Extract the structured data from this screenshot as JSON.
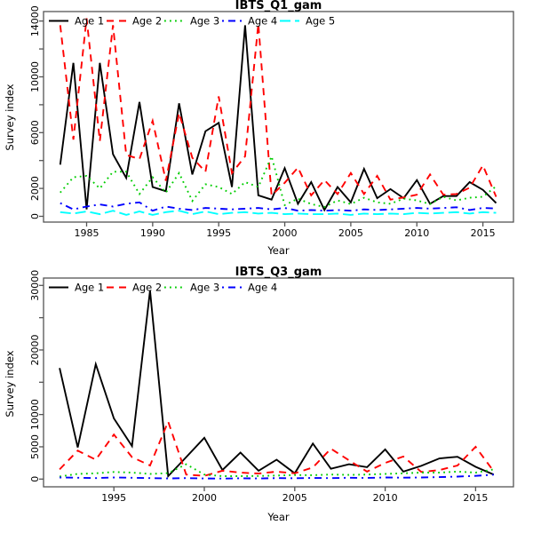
{
  "page": {
    "background": "#ffffff"
  },
  "chart_data": [
    {
      "type": "line",
      "title": "IBTS_Q1_gam",
      "xlabel": "Year",
      "ylabel": "Survey index",
      "grid": false,
      "legend_position": "top-left-horizontal",
      "xlim": [
        1983,
        2016
      ],
      "ylim": [
        0,
        14300
      ],
      "xticks": [
        1985,
        1990,
        1995,
        2000,
        2005,
        2010,
        2015
      ],
      "yticks": [
        0,
        2000,
        4000,
        6000,
        8000,
        10000,
        12000,
        14000
      ],
      "ytick_labels_shown": [
        0,
        2000,
        6000,
        10000,
        14000
      ],
      "x": [
        1983,
        1984,
        1985,
        1986,
        1987,
        1988,
        1989,
        1990,
        1991,
        1992,
        1993,
        1994,
        1995,
        1996,
        1997,
        1998,
        1999,
        2000,
        2001,
        2002,
        2003,
        2004,
        2005,
        2006,
        2007,
        2008,
        2009,
        2010,
        2011,
        2012,
        2013,
        2014,
        2015,
        2016
      ],
      "series": [
        {
          "name": "Age 1",
          "color": "#000000",
          "linestyle": "solid",
          "values": [
            3700,
            11000,
            500,
            11000,
            4450,
            2750,
            8200,
            2100,
            1800,
            8100,
            3000,
            6100,
            6700,
            2100,
            13700,
            1500,
            1200,
            3450,
            900,
            2450,
            450,
            2100,
            1000,
            3400,
            1300,
            1950,
            1300,
            2600,
            900,
            1450,
            1450,
            2450,
            1900,
            950
          ]
        },
        {
          "name": "Age 2",
          "color": "#FF0000",
          "linestyle": "dashed",
          "values": [
            13700,
            5500,
            14200,
            5400,
            13700,
            4400,
            4100,
            6850,
            2550,
            7400,
            4200,
            3200,
            8600,
            3100,
            4300,
            13800,
            1500,
            2400,
            3500,
            1500,
            2600,
            1600,
            3100,
            1600,
            2900,
            1200,
            1350,
            1550,
            3000,
            1550,
            1600,
            2050,
            3650,
            1400
          ]
        },
        {
          "name": "Age 3",
          "color": "#00CD00",
          "linestyle": "dotted",
          "values": [
            1700,
            2800,
            2900,
            2000,
            3200,
            3200,
            1600,
            2800,
            1700,
            3100,
            1100,
            2300,
            2100,
            1600,
            2450,
            2100,
            4300,
            800,
            1270,
            880,
            670,
            1140,
            880,
            1330,
            1000,
            900,
            1270,
            1140,
            880,
            1400,
            1140,
            1330,
            1400,
            2150
          ]
        },
        {
          "name": "Age 4",
          "color": "#0000FF",
          "linestyle": "dashdot",
          "values": [
            950,
            500,
            700,
            850,
            700,
            900,
            1000,
            400,
            700,
            550,
            450,
            600,
            550,
            500,
            550,
            600,
            500,
            600,
            400,
            450,
            400,
            450,
            400,
            500,
            450,
            500,
            550,
            600,
            550,
            600,
            650,
            450,
            600,
            560
          ]
        },
        {
          "name": "Age 5",
          "color": "#00FFFF",
          "linestyle": "longdash",
          "values": [
            300,
            200,
            350,
            150,
            400,
            100,
            350,
            100,
            300,
            400,
            150,
            350,
            150,
            250,
            300,
            200,
            250,
            150,
            200,
            150,
            150,
            200,
            100,
            200,
            150,
            200,
            150,
            250,
            200,
            250,
            300,
            200,
            300,
            250
          ]
        }
      ]
    },
    {
      "type": "line",
      "title": "IBTS_Q3_gam",
      "xlabel": "Year",
      "ylabel": "Survey index",
      "grid": false,
      "legend_position": "top-left-horizontal",
      "xlim": [
        1992,
        2016
      ],
      "ylim": [
        0,
        29200
      ],
      "xticks": [
        1995,
        2000,
        2005,
        2010,
        2015
      ],
      "yticks": [
        0,
        5000,
        10000,
        15000,
        20000,
        25000,
        30000
      ],
      "ytick_labels_shown": [
        0,
        5000,
        10000,
        20000,
        30000
      ],
      "x": [
        1992,
        1993,
        1994,
        1995,
        1996,
        1997,
        1998,
        1999,
        2000,
        2001,
        2002,
        2003,
        2004,
        2005,
        2006,
        2007,
        2008,
        2009,
        2010,
        2011,
        2012,
        2013,
        2014,
        2015,
        2016
      ],
      "series": [
        {
          "name": "Age 1",
          "color": "#000000",
          "linestyle": "solid",
          "values": [
            17200,
            4900,
            17800,
            9400,
            5100,
            29200,
            450,
            3400,
            6400,
            1400,
            4100,
            1300,
            3000,
            900,
            5500,
            1600,
            2300,
            1850,
            4600,
            1150,
            2050,
            3200,
            3450,
            1900,
            700
          ]
        },
        {
          "name": "Age 2",
          "color": "#FF0000",
          "linestyle": "dashed",
          "values": [
            1500,
            4400,
            3000,
            6900,
            3400,
            2100,
            8900,
            700,
            500,
            1300,
            1000,
            850,
            1150,
            900,
            1800,
            4700,
            2900,
            1150,
            2500,
            3500,
            1100,
            1400,
            2100,
            5000,
            1200
          ]
        },
        {
          "name": "Age 3",
          "color": "#00CD00",
          "linestyle": "dotted",
          "values": [
            400,
            800,
            900,
            1100,
            1000,
            800,
            920,
            2300,
            700,
            455,
            455,
            480,
            550,
            620,
            600,
            700,
            650,
            700,
            800,
            900,
            1000,
            1000,
            1150,
            1000,
            1500
          ]
        },
        {
          "name": "Age 4",
          "color": "#0000FF",
          "linestyle": "dashdot",
          "values": [
            250,
            200,
            150,
            250,
            200,
            150,
            100,
            150,
            100,
            80,
            120,
            100,
            150,
            120,
            180,
            150,
            200,
            180,
            250,
            220,
            250,
            300,
            380,
            500,
            690
          ]
        }
      ]
    }
  ]
}
